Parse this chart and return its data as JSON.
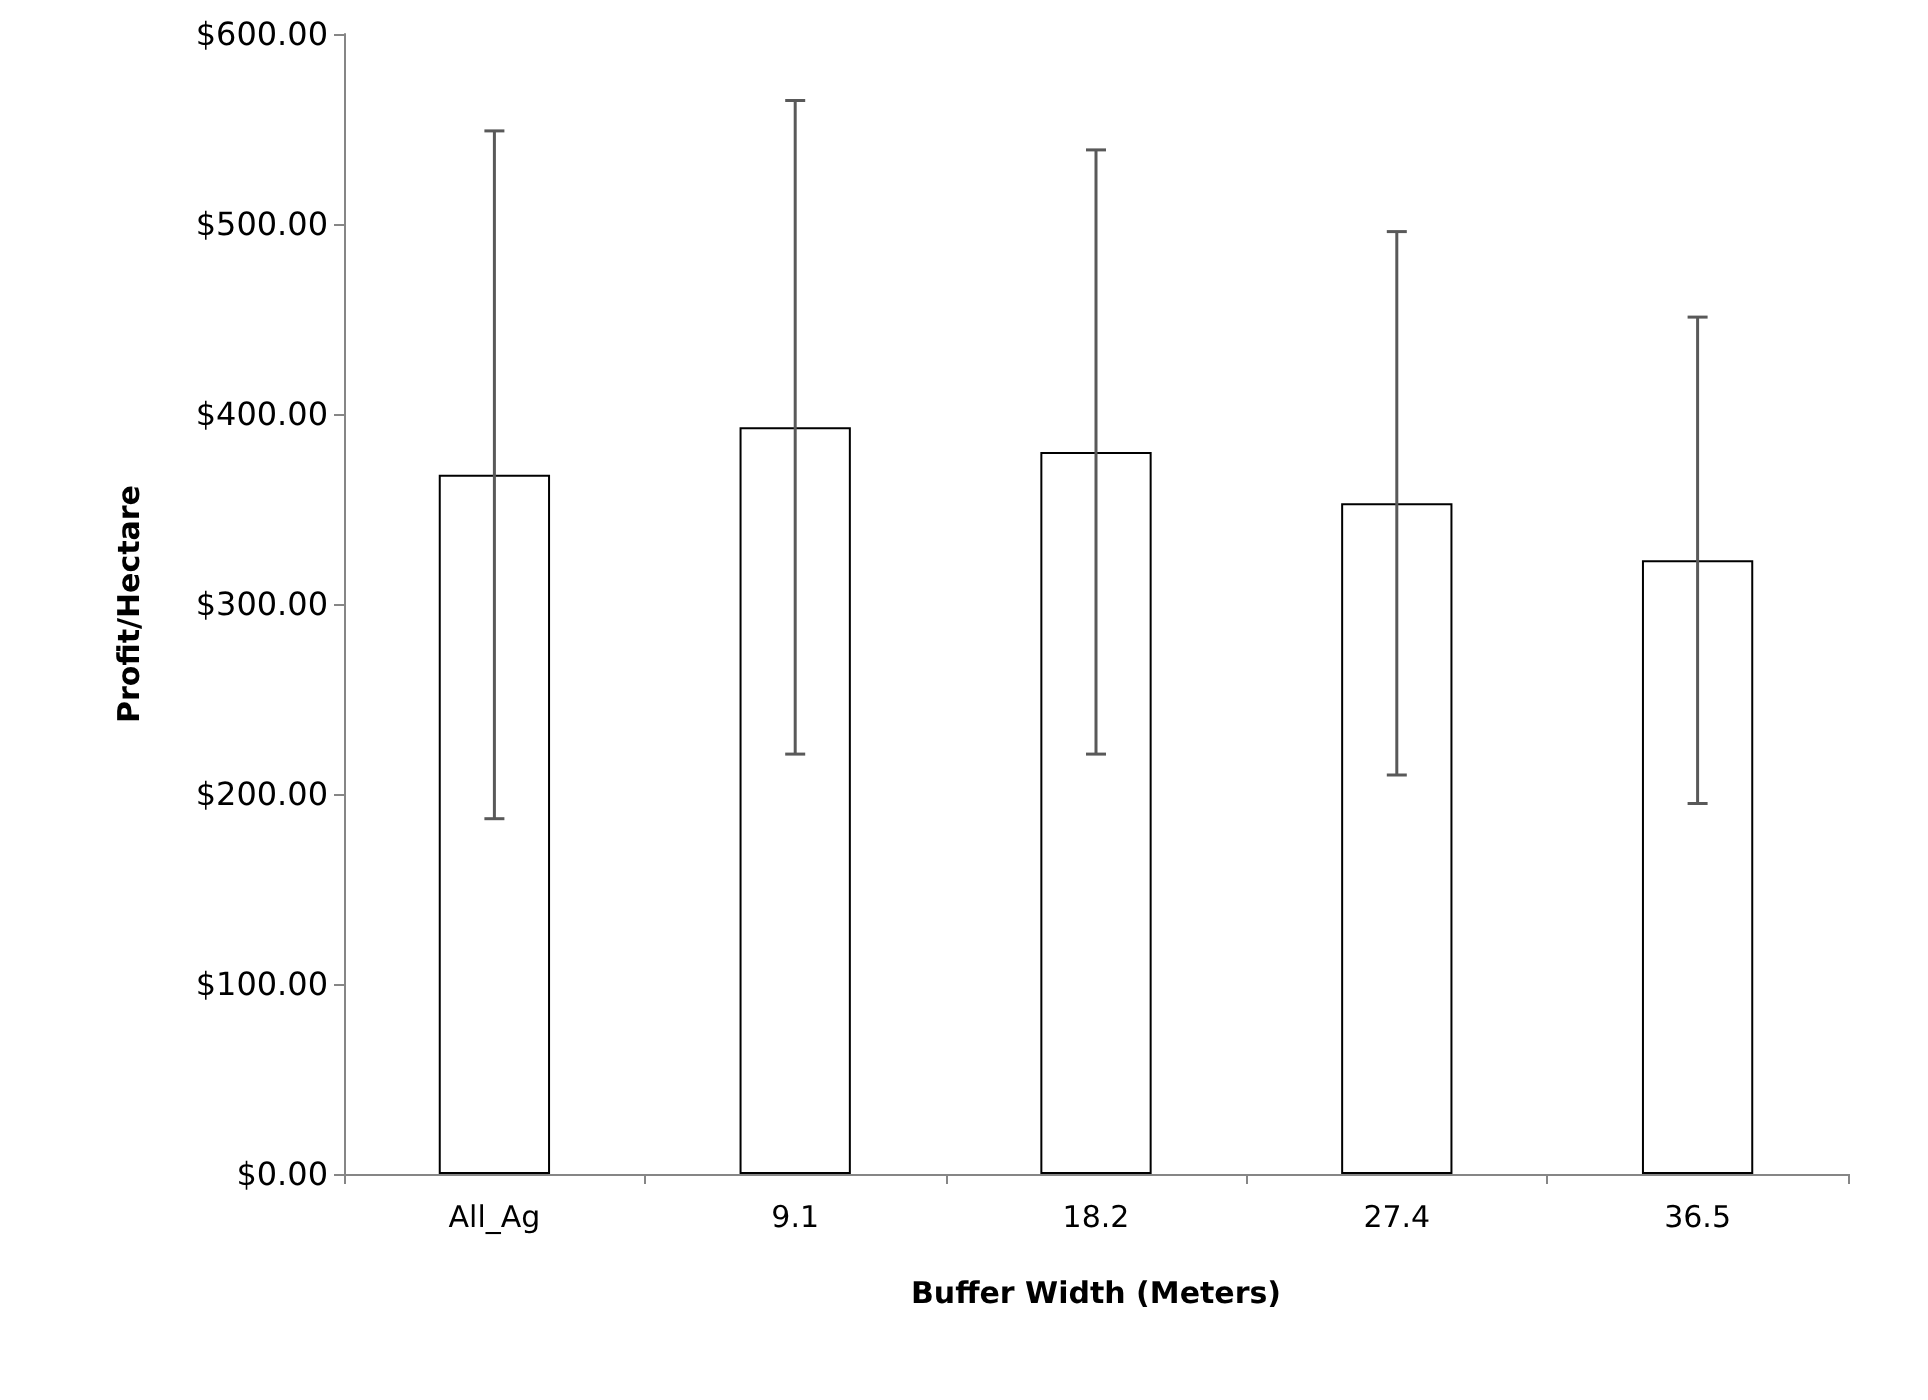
{
  "chart_data": {
    "type": "bar",
    "xlabel": "Buffer Width (Meters)",
    "ylabel": "Profit/Hectare",
    "categories": [
      "All_Ag",
      "9.1",
      "18.2",
      "27.4",
      "36.5"
    ],
    "values": [
      368,
      393,
      380,
      353,
      323
    ],
    "errors": [
      181,
      172,
      159,
      143,
      128
    ],
    "color": "#ffffff",
    "ylim": [
      0,
      600
    ],
    "yticks": [
      {
        "value": 0,
        "label": "$0.00"
      },
      {
        "value": 100,
        "label": "$100.00"
      },
      {
        "value": 200,
        "label": "$200.00"
      },
      {
        "value": 300,
        "label": "$300.00"
      },
      {
        "value": 400,
        "label": "$400.00"
      },
      {
        "value": 500,
        "label": "$500.00"
      },
      {
        "value": 600,
        "label": "$600.00"
      }
    ],
    "grid": false
  }
}
